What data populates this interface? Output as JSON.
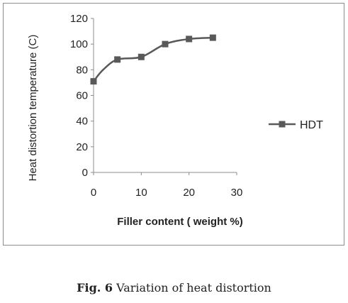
{
  "chart_data": {
    "type": "line",
    "x": [
      0,
      2,
      5,
      10,
      15,
      20,
      25
    ],
    "series": [
      {
        "name": "HDT",
        "values": [
          71,
          80,
          88,
          90,
          100,
          104,
          105
        ],
        "markers_at_x": [
          0,
          5,
          10,
          15,
          20,
          25
        ],
        "color": "#595959",
        "marker": "square"
      }
    ],
    "xlabel": "Filler content ( weight %)",
    "ylabel": "Heat distortion temperature (C)",
    "xlim": [
      0,
      30
    ],
    "ylim": [
      0,
      120
    ],
    "xticks": [
      "0",
      "10",
      "20",
      "30"
    ],
    "yticks": [
      "0",
      "20",
      "40",
      "60",
      "80",
      "100",
      "120"
    ],
    "grid": false,
    "legend_position": "right"
  },
  "caption": {
    "label": "Fig. 6",
    "text": "Variation of heat distortion"
  }
}
